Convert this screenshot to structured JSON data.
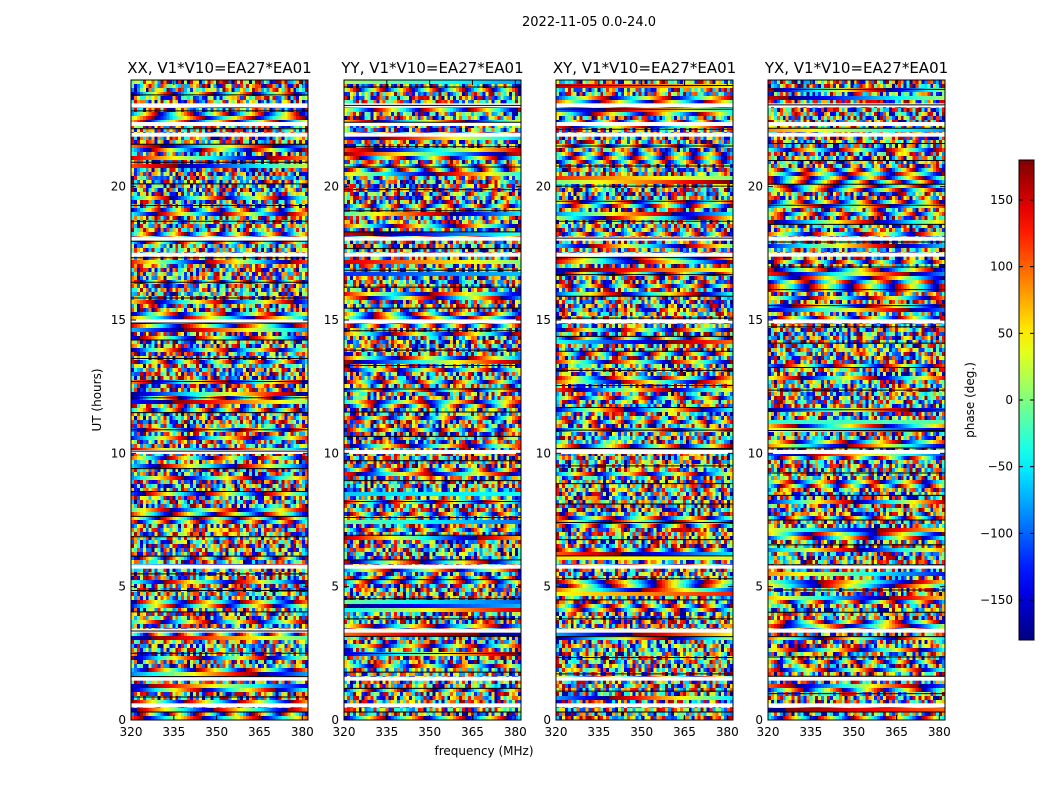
{
  "chart_data": {
    "type": "heatmap",
    "title": "2022-11-05 0.0-24.0",
    "xlabel": "frequency (MHz)",
    "ylabel": "UT (hours)",
    "xlim": [
      320,
      382
    ],
    "ylim": [
      0,
      24
    ],
    "xticks": [
      "320",
      "335",
      "350",
      "365",
      "380"
    ],
    "yticks": [
      "0",
      "5",
      "10",
      "15",
      "20"
    ],
    "panels": [
      {
        "name": "XX",
        "title": "XX, V1*V10=EA27*EA01"
      },
      {
        "name": "YY",
        "title": "YY, V1*V10=EA27*EA01"
      },
      {
        "name": "XY",
        "title": "XY, V1*V10=EA27*EA01"
      },
      {
        "name": "YX",
        "title": "YX, V1*V10=EA27*EA01"
      }
    ],
    "colorbar": {
      "label": "phase (deg.)",
      "range": [
        -180,
        180
      ],
      "colormap": "jet",
      "ticks": [
        "150",
        "100",
        "50",
        "0",
        "−50",
        "−100",
        "−150"
      ],
      "tick_values": [
        150,
        100,
        50,
        0,
        -50,
        -100,
        -150
      ]
    },
    "flagged_ut_hours": [
      0.55,
      1.55,
      3.35,
      5.75,
      10.05,
      14.95,
      17.45,
      18.05,
      21.95,
      22.35,
      23.05
    ]
  }
}
